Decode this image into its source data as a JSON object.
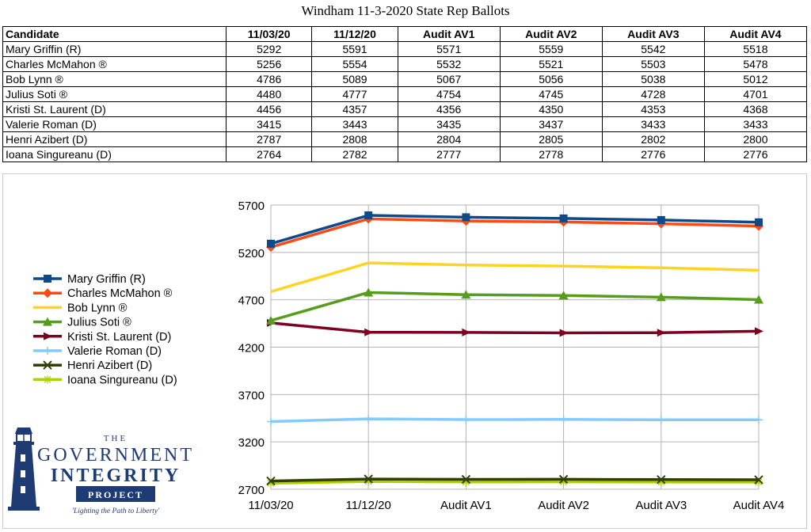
{
  "title": "Windham 11-3-2020 State Rep Ballots",
  "table": {
    "headers": [
      "Candidate",
      "11/03/20",
      "11/12/20",
      "Audit AV1",
      "Audit AV2",
      "Audit AV3",
      "Audit AV4"
    ],
    "rows": [
      [
        "Mary Griffin (R)",
        "5292",
        "5591",
        "5571",
        "5559",
        "5542",
        "5518"
      ],
      [
        "Charles McMahon ®",
        "5256",
        "5554",
        "5532",
        "5521",
        "5503",
        "5478"
      ],
      [
        "Bob Lynn ®",
        "4786",
        "5089",
        "5067",
        "5056",
        "5038",
        "5012"
      ],
      [
        "Julius Soti ®",
        "4480",
        "4777",
        "4754",
        "4745",
        "4728",
        "4701"
      ],
      [
        "Kristi St. Laurent (D)",
        "4456",
        "4357",
        "4356",
        "4350",
        "4353",
        "4368"
      ],
      [
        "Valerie Roman (D)",
        "3415",
        "3443",
        "3435",
        "3437",
        "3433",
        "3433"
      ],
      [
        "Henri Azibert (D)",
        "2787",
        "2808",
        "2804",
        "2805",
        "2802",
        "2800"
      ],
      [
        "Ioana Singureanu (D)",
        "2764",
        "2782",
        "2777",
        "2778",
        "2776",
        "2776"
      ]
    ]
  },
  "chart_data": {
    "type": "line",
    "title": "",
    "xlabel": "",
    "ylabel": "",
    "categories": [
      "11/03/20",
      "11/12/20",
      "Audit AV1",
      "Audit AV2",
      "Audit AV3",
      "Audit AV4"
    ],
    "ylim": [
      2700,
      5700
    ],
    "yticks": [
      2700,
      3200,
      3700,
      4200,
      4700,
      5200,
      5700
    ],
    "grid": true,
    "legend_position": "left",
    "series": [
      {
        "name": "Mary Griffin (R)",
        "values": [
          5292,
          5591,
          5571,
          5559,
          5542,
          5518
        ],
        "color": "#0d4a8a",
        "marker": "square"
      },
      {
        "name": "Charles McMahon ®",
        "values": [
          5256,
          5554,
          5532,
          5521,
          5503,
          5478
        ],
        "color": "#ff4a12",
        "marker": "diamond"
      },
      {
        "name": "Bob Lynn ®",
        "values": [
          4786,
          5089,
          5067,
          5056,
          5038,
          5012
        ],
        "color": "#ffd320",
        "marker": "none"
      },
      {
        "name": "Julius Soti ®",
        "values": [
          4480,
          4777,
          4754,
          4745,
          4728,
          4701
        ],
        "color": "#579d1c",
        "marker": "triangle"
      },
      {
        "name": "Kristi St. Laurent (D)",
        "values": [
          4456,
          4357,
          4356,
          4350,
          4353,
          4368
        ],
        "color": "#7e0021",
        "marker": "arrow"
      },
      {
        "name": "Valerie Roman (D)",
        "values": [
          3415,
          3443,
          3435,
          3437,
          3433,
          3433
        ],
        "color": "#83caff",
        "marker": "plus"
      },
      {
        "name": "Henri Azibert (D)",
        "values": [
          2787,
          2808,
          2804,
          2805,
          2802,
          2800
        ],
        "color": "#314004",
        "marker": "x"
      },
      {
        "name": "Ioana Singureanu (D)",
        "values": [
          2764,
          2782,
          2777,
          2778,
          2776,
          2776
        ],
        "color": "#aecf00",
        "marker": "star"
      }
    ]
  },
  "logo": {
    "line1": "THE",
    "line2": "GOVERNMENT",
    "line3": "INTEGRITY",
    "line4": "PROJECT",
    "tagline": "'Lighting the Path to Liberty'",
    "color": "#1f3b73"
  }
}
